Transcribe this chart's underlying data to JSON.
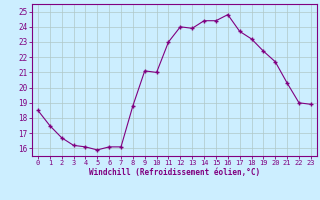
{
  "x": [
    0,
    1,
    2,
    3,
    4,
    5,
    6,
    7,
    8,
    9,
    10,
    11,
    12,
    13,
    14,
    15,
    16,
    17,
    18,
    19,
    20,
    21,
    22,
    23
  ],
  "y": [
    18.5,
    17.5,
    16.7,
    16.2,
    16.1,
    15.9,
    16.1,
    16.1,
    18.8,
    21.1,
    21.0,
    23.0,
    24.0,
    23.9,
    24.4,
    24.4,
    24.8,
    23.7,
    23.2,
    22.4,
    21.7,
    20.3,
    19.0,
    18.9
  ],
  "line_color": "#800080",
  "marker": "+",
  "markersize": 3,
  "bg_color": "#cceeff",
  "grid_color": "#b0c8c8",
  "ylabel_ticks": [
    16,
    17,
    18,
    19,
    20,
    21,
    22,
    23,
    24,
    25
  ],
  "xlabel": "Windchill (Refroidissement éolien,°C)",
  "xlim": [
    -0.5,
    23.5
  ],
  "ylim": [
    15.5,
    25.5
  ],
  "tick_color": "#800080",
  "label_color": "#800080",
  "xtick_fontsize": 5.0,
  "ytick_fontsize": 5.5,
  "xlabel_fontsize": 5.5
}
